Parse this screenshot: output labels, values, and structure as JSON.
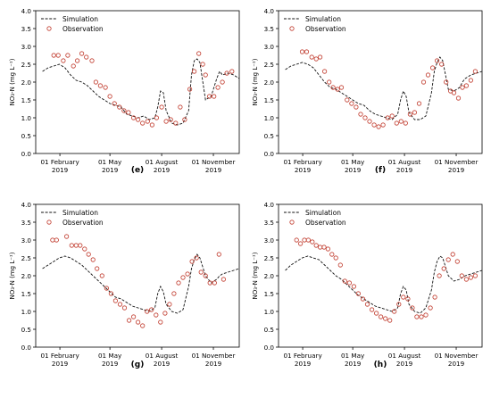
{
  "chart_data": [
    {
      "type": "line",
      "panel_label": "(e)",
      "ylabel": "NO₃-N (mg L⁻¹)",
      "ylim": [
        0,
        4.0
      ],
      "yticks": [
        "0.0",
        "0.5",
        "1.0",
        "1.5",
        "2.0",
        "2.5",
        "3.0",
        "3.5",
        "4.0"
      ],
      "xlim": [
        -12,
        350
      ],
      "xticks": [
        {
          "x": 31,
          "line1": "01 February",
          "line2": "2019"
        },
        {
          "x": 120,
          "line1": "01 May",
          "line2": "2019"
        },
        {
          "x": 212,
          "line1": "01 August",
          "line2": "2019"
        },
        {
          "x": 304,
          "line1": "01 November",
          "line2": "2019"
        }
      ],
      "legend_position": "top-left",
      "series": [
        {
          "name": "Simulation",
          "style": "dashed",
          "x": [
            0,
            10,
            20,
            30,
            40,
            50,
            60,
            70,
            80,
            90,
            100,
            110,
            120,
            130,
            140,
            150,
            160,
            170,
            180,
            190,
            200,
            205,
            210,
            215,
            220,
            230,
            240,
            250,
            260,
            265,
            270,
            275,
            280,
            290,
            300,
            310,
            315,
            320,
            330,
            340,
            350
          ],
          "y": [
            2.3,
            2.4,
            2.45,
            2.5,
            2.4,
            2.2,
            2.05,
            2.0,
            1.9,
            1.75,
            1.6,
            1.5,
            1.4,
            1.35,
            1.3,
            1.1,
            1.05,
            1.0,
            1.05,
            0.95,
            1.0,
            1.3,
            1.75,
            1.7,
            1.2,
            0.85,
            0.8,
            0.85,
            1.2,
            2.2,
            2.6,
            2.65,
            2.55,
            1.5,
            1.6,
            2.1,
            2.3,
            2.2,
            2.25,
            2.2,
            2.1
          ]
        },
        {
          "name": "Observation",
          "style": "circle",
          "x": [
            20,
            28,
            37,
            45,
            55,
            62,
            70,
            78,
            88,
            95,
            103,
            112,
            120,
            128,
            137,
            145,
            153,
            162,
            170,
            178,
            187,
            195,
            203,
            212,
            220,
            228,
            237,
            245,
            253,
            262,
            270,
            278,
            285,
            290,
            297,
            305,
            312,
            320,
            328,
            337
          ],
          "y": [
            2.75,
            2.75,
            2.6,
            2.75,
            2.45,
            2.6,
            2.8,
            2.7,
            2.6,
            2.0,
            1.9,
            1.85,
            1.6,
            1.4,
            1.3,
            1.2,
            1.15,
            1.0,
            0.95,
            0.85,
            0.9,
            0.8,
            1.0,
            1.3,
            0.9,
            0.95,
            0.85,
            1.3,
            0.95,
            1.8,
            2.3,
            2.8,
            2.5,
            2.2,
            1.6,
            1.6,
            1.85,
            2.0,
            2.25,
            2.3
          ]
        }
      ]
    },
    {
      "type": "line",
      "panel_label": "(f)",
      "ylabel": "NO₃-N (mg L⁻¹)",
      "ylim": [
        0,
        4.0
      ],
      "yticks": [
        "0.0",
        "0.5",
        "1.0",
        "1.5",
        "2.0",
        "2.5",
        "3.0",
        "3.5",
        "4.0"
      ],
      "xlim": [
        -12,
        350
      ],
      "xticks": [
        {
          "x": 31,
          "line1": "01 February",
          "line2": "2019"
        },
        {
          "x": 120,
          "line1": "01 May",
          "line2": "2019"
        },
        {
          "x": 212,
          "line1": "01 August",
          "line2": "2019"
        },
        {
          "x": 304,
          "line1": "01 November",
          "line2": "2019"
        }
      ],
      "legend_position": "top-left",
      "series": [
        {
          "name": "Simulation",
          "style": "dashed",
          "x": [
            0,
            10,
            20,
            30,
            40,
            50,
            60,
            70,
            80,
            90,
            100,
            110,
            120,
            130,
            140,
            150,
            160,
            170,
            180,
            190,
            200,
            205,
            210,
            215,
            220,
            230,
            240,
            250,
            260,
            265,
            270,
            275,
            280,
            290,
            300,
            310,
            315,
            320,
            330,
            340,
            350
          ],
          "y": [
            2.35,
            2.45,
            2.5,
            2.55,
            2.5,
            2.4,
            2.2,
            2.0,
            1.85,
            1.8,
            1.7,
            1.6,
            1.5,
            1.4,
            1.35,
            1.2,
            1.1,
            1.05,
            1.0,
            0.95,
            1.1,
            1.5,
            1.75,
            1.6,
            1.15,
            0.95,
            0.95,
            1.05,
            1.7,
            2.3,
            2.55,
            2.7,
            2.6,
            1.8,
            1.75,
            1.85,
            2.0,
            2.1,
            2.2,
            2.25,
            2.3
          ]
        },
        {
          "name": "Observation",
          "style": "circle",
          "x": [
            30,
            38,
            47,
            55,
            62,
            70,
            78,
            85,
            93,
            100,
            110,
            118,
            126,
            134,
            142,
            150,
            158,
            166,
            174,
            182,
            190,
            198,
            206,
            214,
            222,
            230,
            238,
            246,
            254,
            262,
            270,
            278,
            286,
            294,
            300,
            308,
            315,
            322,
            330,
            338
          ],
          "y": [
            2.85,
            2.85,
            2.7,
            2.65,
            2.7,
            2.3,
            2.0,
            1.85,
            1.8,
            1.85,
            1.5,
            1.4,
            1.3,
            1.1,
            1.0,
            0.9,
            0.8,
            0.75,
            0.8,
            1.0,
            1.05,
            0.85,
            0.9,
            0.85,
            1.1,
            1.15,
            1.4,
            2.0,
            2.2,
            2.4,
            2.6,
            2.5,
            2.0,
            1.75,
            1.7,
            1.55,
            1.85,
            1.9,
            2.05,
            2.3
          ]
        }
      ]
    },
    {
      "type": "line",
      "panel_label": "(g)",
      "ylabel": "NO₃-N (mg L⁻¹)",
      "ylim": [
        0,
        4.0
      ],
      "yticks": [
        "0.0",
        "0.5",
        "1.0",
        "1.5",
        "2.0",
        "2.5",
        "3.0",
        "3.5",
        "4.0"
      ],
      "xlim": [
        -12,
        350
      ],
      "xticks": [
        {
          "x": 31,
          "line1": "01 February",
          "line2": "2019"
        },
        {
          "x": 120,
          "line1": "01 May",
          "line2": "2019"
        },
        {
          "x": 212,
          "line1": "01 August",
          "line2": "2019"
        },
        {
          "x": 304,
          "line1": "01 November",
          "line2": "2019"
        }
      ],
      "legend_position": "top-left",
      "series": [
        {
          "name": "Simulation",
          "style": "dashed",
          "x": [
            0,
            10,
            20,
            30,
            40,
            50,
            60,
            70,
            80,
            90,
            100,
            110,
            120,
            130,
            140,
            150,
            160,
            170,
            180,
            190,
            200,
            205,
            210,
            215,
            220,
            230,
            240,
            250,
            260,
            265,
            270,
            275,
            280,
            290,
            300,
            310,
            315,
            320,
            330,
            340,
            350
          ],
          "y": [
            2.2,
            2.3,
            2.4,
            2.5,
            2.55,
            2.5,
            2.4,
            2.3,
            2.15,
            2.0,
            1.85,
            1.7,
            1.55,
            1.4,
            1.35,
            1.25,
            1.15,
            1.1,
            1.05,
            1.0,
            1.1,
            1.5,
            1.7,
            1.55,
            1.2,
            1.0,
            0.95,
            1.05,
            1.7,
            2.2,
            2.45,
            2.6,
            2.5,
            2.0,
            1.8,
            1.9,
            2.0,
            2.05,
            2.1,
            2.15,
            2.2
          ]
        },
        {
          "name": "Observation",
          "style": "circle",
          "x": [
            18,
            25,
            43,
            52,
            60,
            67,
            75,
            82,
            90,
            97,
            106,
            114,
            122,
            130,
            138,
            146,
            154,
            162,
            170,
            178,
            186,
            194,
            202,
            210,
            218,
            226,
            234,
            242,
            250,
            258,
            266,
            274,
            282,
            290,
            298,
            306,
            314,
            322
          ],
          "y": [
            3.0,
            3.0,
            3.1,
            2.85,
            2.85,
            2.85,
            2.75,
            2.6,
            2.45,
            2.2,
            2.0,
            1.65,
            1.5,
            1.3,
            1.2,
            1.1,
            0.75,
            0.85,
            0.7,
            0.6,
            1.0,
            1.05,
            0.9,
            0.7,
            0.95,
            1.2,
            1.5,
            1.8,
            1.95,
            2.05,
            2.4,
            2.5,
            2.1,
            2.0,
            1.8,
            1.8,
            2.6,
            1.9
          ]
        }
      ]
    },
    {
      "type": "line",
      "panel_label": "(h)",
      "ylabel": "NO₃-N (mg L⁻¹)",
      "ylim": [
        0,
        4.0
      ],
      "yticks": [
        "0.0",
        "0.5",
        "1.0",
        "1.5",
        "2.0",
        "2.5",
        "3.0",
        "3.5",
        "4.0"
      ],
      "xlim": [
        -12,
        350
      ],
      "xticks": [
        {
          "x": 31,
          "line1": "01 February",
          "line2": "2019"
        },
        {
          "x": 120,
          "line1": "01 May",
          "line2": "2019"
        },
        {
          "x": 212,
          "line1": "01 August",
          "line2": "2019"
        },
        {
          "x": 304,
          "line1": "01 November",
          "line2": "2019"
        }
      ],
      "legend_position": "top-left",
      "series": [
        {
          "name": "Simulation",
          "style": "dashed",
          "x": [
            0,
            10,
            20,
            30,
            40,
            50,
            60,
            70,
            80,
            90,
            100,
            110,
            120,
            130,
            140,
            150,
            160,
            170,
            180,
            190,
            200,
            205,
            210,
            215,
            220,
            230,
            240,
            250,
            260,
            265,
            270,
            275,
            280,
            290,
            300,
            310,
            315,
            320,
            330,
            340,
            350
          ],
          "y": [
            2.15,
            2.3,
            2.4,
            2.5,
            2.55,
            2.5,
            2.45,
            2.3,
            2.15,
            2.0,
            1.9,
            1.75,
            1.6,
            1.45,
            1.35,
            1.25,
            1.15,
            1.1,
            1.05,
            1.0,
            1.1,
            1.5,
            1.7,
            1.6,
            1.2,
            1.0,
            0.95,
            1.1,
            1.6,
            2.1,
            2.4,
            2.55,
            2.5,
            2.0,
            1.85,
            1.9,
            1.95,
            2.0,
            2.05,
            2.1,
            2.15
          ]
        },
        {
          "name": "Observation",
          "style": "circle",
          "x": [
            20,
            27,
            34,
            41,
            48,
            55,
            62,
            69,
            76,
            83,
            90,
            98,
            106,
            114,
            122,
            130,
            138,
            146,
            154,
            162,
            170,
            178,
            186,
            194,
            202,
            210,
            218,
            226,
            234,
            242,
            250,
            258,
            266,
            274,
            282,
            290,
            298,
            306,
            314,
            322,
            330,
            338
          ],
          "y": [
            3.0,
            2.9,
            3.0,
            3.0,
            2.95,
            2.85,
            2.8,
            2.8,
            2.75,
            2.6,
            2.5,
            2.3,
            1.85,
            1.8,
            1.7,
            1.5,
            1.35,
            1.2,
            1.05,
            0.95,
            0.85,
            0.8,
            0.75,
            1.0,
            1.2,
            1.4,
            1.35,
            1.1,
            0.85,
            0.85,
            0.9,
            1.1,
            1.4,
            2.0,
            2.2,
            2.45,
            2.6,
            2.4,
            2.0,
            1.9,
            1.95,
            2.0
          ]
        }
      ]
    }
  ]
}
